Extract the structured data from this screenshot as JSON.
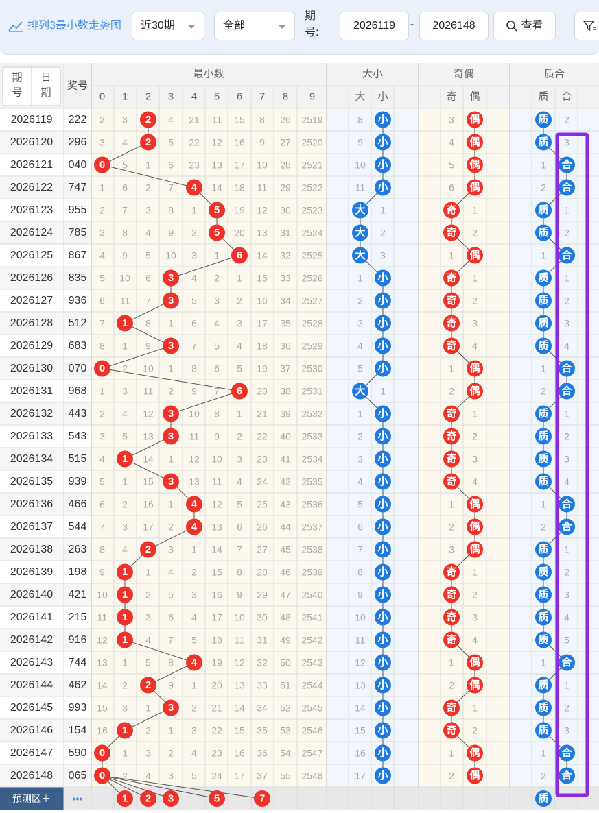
{
  "toolbar": {
    "title": "排列3最小数走势图",
    "period_select": "近30期",
    "scope_select": "全部",
    "issue_label": "期号:",
    "start_issue": "2026119",
    "end_issue": "2026148",
    "range_dash": "-",
    "view_button": "查看"
  },
  "header": {
    "col_issue_top": "期号",
    "col_issue_top_alt": "日期",
    "col_prize": "奖号",
    "group_min": "最小数",
    "group_size": "大小",
    "group_parity": "奇偶",
    "group_prime": "质合",
    "min_digits": [
      "0",
      "1",
      "2",
      "3",
      "4",
      "5",
      "6",
      "7",
      "8",
      "9"
    ],
    "size_cols": [
      "大",
      "小"
    ],
    "parity_cols": [
      "奇",
      "偶"
    ],
    "prime_cols": [
      "质",
      "合"
    ]
  },
  "rows": [
    {
      "issue": "2026119",
      "prize": "222",
      "min": [
        2,
        3,
        "2",
        4,
        21,
        11,
        15,
        8,
        26,
        2519
      ],
      "size": [
        8,
        "小"
      ],
      "parity": [
        3,
        "偶"
      ],
      "prime": [
        "质",
        2
      ]
    },
    {
      "issue": "2026120",
      "prize": "296",
      "min": [
        3,
        4,
        "2",
        5,
        22,
        12,
        16,
        9,
        27,
        2520
      ],
      "size": [
        9,
        "小"
      ],
      "parity": [
        4,
        "偶"
      ],
      "prime": [
        "质",
        3
      ]
    },
    {
      "issue": "2026121",
      "prize": "040",
      "min": [
        "0",
        5,
        1,
        6,
        23,
        13,
        17,
        10,
        28,
        2521
      ],
      "size": [
        10,
        "小"
      ],
      "parity": [
        5,
        "偶"
      ],
      "prime": [
        1,
        "合"
      ]
    },
    {
      "issue": "2026122",
      "prize": "747",
      "min": [
        1,
        6,
        2,
        7,
        "4",
        14,
        18,
        11,
        29,
        2522
      ],
      "size": [
        11,
        "小"
      ],
      "parity": [
        6,
        "偶"
      ],
      "prime": [
        2,
        "合"
      ]
    },
    {
      "issue": "2026123",
      "prize": "955",
      "min": [
        2,
        7,
        3,
        8,
        1,
        "5",
        19,
        12,
        30,
        2523
      ],
      "size": [
        "大",
        1
      ],
      "parity": [
        "奇",
        1
      ],
      "prime": [
        "质",
        1
      ]
    },
    {
      "issue": "2026124",
      "prize": "785",
      "min": [
        3,
        8,
        4,
        9,
        2,
        "5",
        20,
        13,
        31,
        2524
      ],
      "size": [
        "大",
        2
      ],
      "parity": [
        "奇",
        2
      ],
      "prime": [
        "质",
        2
      ]
    },
    {
      "issue": "2026125",
      "prize": "867",
      "min": [
        4,
        9,
        5,
        10,
        3,
        1,
        "6",
        14,
        32,
        2525
      ],
      "size": [
        "大",
        3
      ],
      "parity": [
        1,
        "偶"
      ],
      "prime": [
        1,
        "合"
      ]
    },
    {
      "issue": "2026126",
      "prize": "835",
      "min": [
        5,
        10,
        6,
        "3",
        4,
        2,
        1,
        15,
        33,
        2526
      ],
      "size": [
        1,
        "小"
      ],
      "parity": [
        "奇",
        1
      ],
      "prime": [
        "质",
        1
      ]
    },
    {
      "issue": "2026127",
      "prize": "936",
      "min": [
        6,
        11,
        7,
        "3",
        5,
        3,
        2,
        16,
        34,
        2527
      ],
      "size": [
        2,
        "小"
      ],
      "parity": [
        "奇",
        2
      ],
      "prime": [
        "质",
        2
      ]
    },
    {
      "issue": "2026128",
      "prize": "512",
      "min": [
        7,
        "1",
        8,
        1,
        6,
        4,
        3,
        17,
        35,
        2528
      ],
      "size": [
        3,
        "小"
      ],
      "parity": [
        "奇",
        3
      ],
      "prime": [
        "质",
        3
      ]
    },
    {
      "issue": "2026129",
      "prize": "683",
      "min": [
        8,
        1,
        9,
        "3",
        7,
        5,
        4,
        18,
        36,
        2529
      ],
      "size": [
        4,
        "小"
      ],
      "parity": [
        "奇",
        4
      ],
      "prime": [
        "质",
        4
      ]
    },
    {
      "issue": "2026130",
      "prize": "070",
      "min": [
        "0",
        2,
        10,
        1,
        8,
        6,
        5,
        19,
        37,
        2530
      ],
      "size": [
        5,
        "小"
      ],
      "parity": [
        1,
        "偶"
      ],
      "prime": [
        1,
        "合"
      ]
    },
    {
      "issue": "2026131",
      "prize": "968",
      "min": [
        1,
        3,
        11,
        2,
        9,
        7,
        "6",
        20,
        38,
        2531
      ],
      "size": [
        "大",
        1
      ],
      "parity": [
        2,
        "偶"
      ],
      "prime": [
        2,
        "合"
      ]
    },
    {
      "issue": "2026132",
      "prize": "443",
      "min": [
        2,
        4,
        12,
        "3",
        10,
        8,
        1,
        21,
        39,
        2532
      ],
      "size": [
        1,
        "小"
      ],
      "parity": [
        "奇",
        1
      ],
      "prime": [
        "质",
        1
      ]
    },
    {
      "issue": "2026133",
      "prize": "543",
      "min": [
        3,
        5,
        13,
        "3",
        11,
        9,
        2,
        22,
        40,
        2533
      ],
      "size": [
        2,
        "小"
      ],
      "parity": [
        "奇",
        2
      ],
      "prime": [
        "质",
        2
      ]
    },
    {
      "issue": "2026134",
      "prize": "515",
      "min": [
        4,
        "1",
        14,
        1,
        12,
        10,
        3,
        23,
        41,
        2534
      ],
      "size": [
        3,
        "小"
      ],
      "parity": [
        "奇",
        3
      ],
      "prime": [
        "质",
        3
      ]
    },
    {
      "issue": "2026135",
      "prize": "939",
      "min": [
        5,
        1,
        15,
        "3",
        13,
        11,
        4,
        24,
        42,
        2535
      ],
      "size": [
        4,
        "小"
      ],
      "parity": [
        "奇",
        4
      ],
      "prime": [
        "质",
        4
      ]
    },
    {
      "issue": "2026136",
      "prize": "466",
      "min": [
        6,
        2,
        16,
        1,
        "4",
        12,
        5,
        25,
        43,
        2536
      ],
      "size": [
        5,
        "小"
      ],
      "parity": [
        1,
        "偶"
      ],
      "prime": [
        1,
        "合"
      ]
    },
    {
      "issue": "2026137",
      "prize": "544",
      "min": [
        7,
        3,
        17,
        2,
        "4",
        13,
        6,
        26,
        44,
        2537
      ],
      "size": [
        6,
        "小"
      ],
      "parity": [
        2,
        "偶"
      ],
      "prime": [
        2,
        "合"
      ]
    },
    {
      "issue": "2026138",
      "prize": "263",
      "min": [
        8,
        4,
        "2",
        3,
        1,
        14,
        7,
        27,
        45,
        2538
      ],
      "size": [
        7,
        "小"
      ],
      "parity": [
        3,
        "偶"
      ],
      "prime": [
        "质",
        1
      ]
    },
    {
      "issue": "2026139",
      "prize": "198",
      "min": [
        9,
        "1",
        1,
        4,
        2,
        15,
        8,
        28,
        46,
        2539
      ],
      "size": [
        8,
        "小"
      ],
      "parity": [
        "奇",
        1
      ],
      "prime": [
        "质",
        2
      ]
    },
    {
      "issue": "2026140",
      "prize": "421",
      "min": [
        10,
        "1",
        2,
        5,
        3,
        16,
        9,
        29,
        47,
        2540
      ],
      "size": [
        9,
        "小"
      ],
      "parity": [
        "奇",
        2
      ],
      "prime": [
        "质",
        3
      ]
    },
    {
      "issue": "2026141",
      "prize": "215",
      "min": [
        11,
        "1",
        3,
        6,
        4,
        17,
        10,
        30,
        48,
        2541
      ],
      "size": [
        10,
        "小"
      ],
      "parity": [
        "奇",
        3
      ],
      "prime": [
        "质",
        4
      ]
    },
    {
      "issue": "2026142",
      "prize": "916",
      "min": [
        12,
        "1",
        4,
        7,
        5,
        18,
        11,
        31,
        49,
        2542
      ],
      "size": [
        11,
        "小"
      ],
      "parity": [
        "奇",
        4
      ],
      "prime": [
        "质",
        5
      ]
    },
    {
      "issue": "2026143",
      "prize": "744",
      "min": [
        13,
        1,
        5,
        8,
        "4",
        19,
        12,
        32,
        50,
        2543
      ],
      "size": [
        12,
        "小"
      ],
      "parity": [
        1,
        "偶"
      ],
      "prime": [
        1,
        "合"
      ]
    },
    {
      "issue": "2026144",
      "prize": "462",
      "min": [
        14,
        2,
        "2",
        9,
        1,
        20,
        13,
        33,
        51,
        2544
      ],
      "size": [
        13,
        "小"
      ],
      "parity": [
        2,
        "偶"
      ],
      "prime": [
        "质",
        1
      ]
    },
    {
      "issue": "2026145",
      "prize": "993",
      "min": [
        15,
        3,
        1,
        "3",
        2,
        21,
        14,
        34,
        52,
        2545
      ],
      "size": [
        14,
        "小"
      ],
      "parity": [
        "奇",
        1
      ],
      "prime": [
        "质",
        2
      ]
    },
    {
      "issue": "2026146",
      "prize": "154",
      "min": [
        16,
        "1",
        2,
        1,
        3,
        22,
        15,
        35,
        53,
        2546
      ],
      "size": [
        15,
        "小"
      ],
      "parity": [
        "奇",
        2
      ],
      "prime": [
        "质",
        3
      ]
    },
    {
      "issue": "2026147",
      "prize": "590",
      "min": [
        "0",
        1,
        3,
        2,
        4,
        23,
        16,
        36,
        54,
        2547
      ],
      "size": [
        16,
        "小"
      ],
      "parity": [
        1,
        "偶"
      ],
      "prime": [
        1,
        "合"
      ]
    },
    {
      "issue": "2026148",
      "prize": "065",
      "min": [
        "0",
        2,
        4,
        3,
        5,
        24,
        17,
        37,
        55,
        2548
      ],
      "size": [
        17,
        "小"
      ],
      "parity": [
        2,
        "偶"
      ],
      "prime": [
        2,
        "合"
      ]
    }
  ],
  "predict": {
    "label": "预测区＋",
    "more": "•••",
    "balls": [
      "1",
      "2",
      "3",
      "5",
      "7"
    ],
    "prime_ball": "质"
  },
  "colors": {
    "red_ball": "#f0312a",
    "blue_ball": "#1f7ae0",
    "highlight_box": "#8a2be2",
    "row_alt": "#f7f7f7",
    "min_bg": "#fdf8ee",
    "size_bg": "#f1f6fd"
  }
}
